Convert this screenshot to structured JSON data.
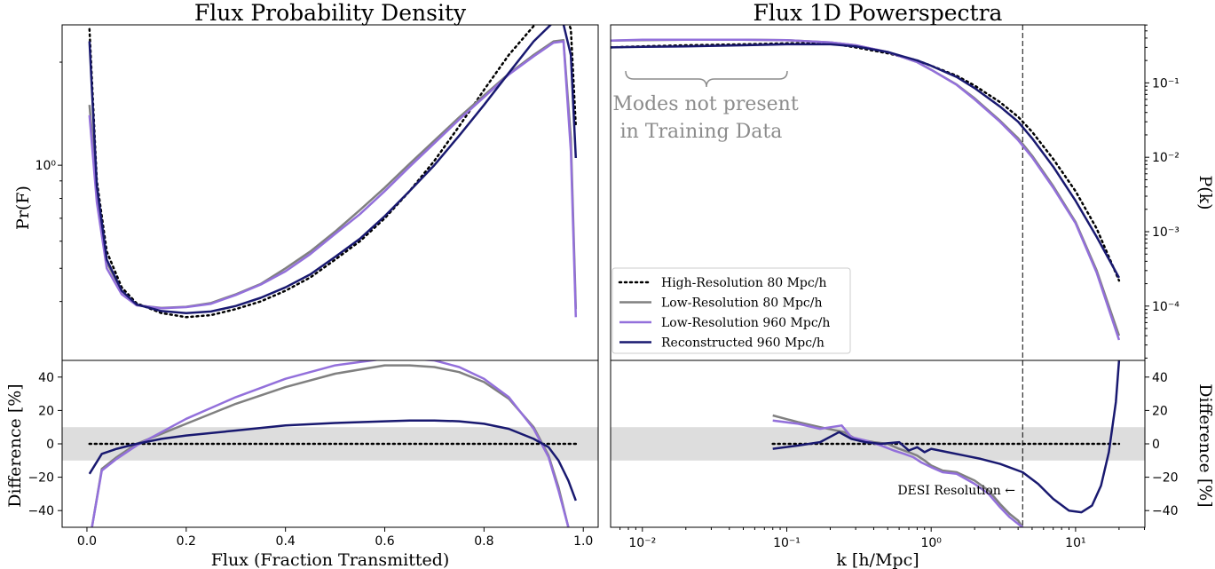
{
  "titles": {
    "left": "Flux Probability Density",
    "right": "Flux 1D Powerspectra"
  },
  "axis_labels": {
    "left_y_top": "Pr(F)",
    "left_y_bottom": "Difference [%]",
    "left_x": "Flux (Fraction Transmitted)",
    "right_y_top": "P(k)",
    "right_y_bottom": "Difference [%]",
    "right_x": "k [h/Mpc]"
  },
  "legend": [
    {
      "label": "High-Resolution 80 Mpc/h",
      "color": "#000000",
      "style": "dotted"
    },
    {
      "label": "Low-Resolution  80 Mpc/h",
      "color": "#808080",
      "style": "solid"
    },
    {
      "label": "Low-Resolution 960 Mpc/h",
      "color": "#9370db",
      "style": "solid"
    },
    {
      "label": "Reconstructed   960 Mpc/h",
      "color": "#191970",
      "style": "solid"
    }
  ],
  "annotations": {
    "modes_line1": "Modes not present",
    "modes_line2": "in Training Data",
    "desi": "DESI Resolution ←"
  },
  "chart_data": [
    {
      "type": "line",
      "panel": "pdf",
      "yscale": "log",
      "xlim": [
        -0.05,
        1.03
      ],
      "ylim_log10": [
        -0.57,
        0.41
      ],
      "yticks": [
        {
          "value": 1,
          "label": "10⁰"
        }
      ],
      "x": [
        0.005,
        0.02,
        0.04,
        0.07,
        0.1,
        0.15,
        0.2,
        0.25,
        0.3,
        0.35,
        0.4,
        0.45,
        0.5,
        0.55,
        0.6,
        0.65,
        0.7,
        0.75,
        0.8,
        0.85,
        0.9,
        0.94,
        0.96,
        0.975,
        0.985
      ],
      "series": [
        {
          "name": "High-Resolution 80 Mpc/h",
          "color": "#000000",
          "dash": "2,4",
          "width": 2.5,
          "values": [
            2.5,
            0.9,
            0.56,
            0.44,
            0.395,
            0.37,
            0.36,
            0.365,
            0.38,
            0.4,
            0.43,
            0.47,
            0.53,
            0.6,
            0.7,
            0.84,
            1.03,
            1.3,
            1.66,
            2.1,
            2.55,
            2.8,
            2.82,
            2.5,
            1.3
          ]
        },
        {
          "name": "Low-Resolution 80 Mpc/h",
          "color": "#808080",
          "dash": "",
          "width": 2.5,
          "values": [
            1.5,
            0.84,
            0.52,
            0.43,
            0.39,
            0.383,
            0.386,
            0.396,
            0.42,
            0.45,
            0.5,
            0.56,
            0.64,
            0.74,
            0.86,
            1.01,
            1.18,
            1.38,
            1.6,
            1.85,
            2.1,
            2.3,
            2.32,
            1.2,
            0.38
          ]
        },
        {
          "name": "Low-Resolution 960 Mpc/h",
          "color": "#9370db",
          "dash": "",
          "width": 2.5,
          "values": [
            1.4,
            0.78,
            0.5,
            0.42,
            0.39,
            0.382,
            0.385,
            0.394,
            0.418,
            0.448,
            0.49,
            0.55,
            0.63,
            0.72,
            0.84,
            0.99,
            1.16,
            1.36,
            1.58,
            1.84,
            2.08,
            2.28,
            2.3,
            1.1,
            0.36
          ]
        },
        {
          "name": "Reconstructed 960 Mpc/h",
          "color": "#191970",
          "dash": "",
          "width": 2.5,
          "values": [
            2.3,
            0.87,
            0.53,
            0.43,
            0.392,
            0.375,
            0.37,
            0.374,
            0.388,
            0.41,
            0.44,
            0.48,
            0.54,
            0.61,
            0.71,
            0.84,
            1.0,
            1.22,
            1.5,
            1.86,
            2.3,
            2.62,
            2.58,
            2.1,
            1.05
          ]
        }
      ]
    },
    {
      "type": "line",
      "panel": "pdf-difference",
      "xlim": [
        -0.05,
        1.03
      ],
      "ylim": [
        -50,
        50
      ],
      "xticks": [
        0.0,
        0.2,
        0.4,
        0.6,
        0.8,
        1.0
      ],
      "xticklabels": [
        "0.0",
        "0.2",
        "0.4",
        "0.6",
        "0.8",
        "1.0"
      ],
      "yticks": [
        -40,
        -20,
        0,
        20,
        40
      ],
      "yticklabels": [
        "−40",
        "−20",
        "0",
        "20",
        "40"
      ],
      "band": [
        -10,
        10
      ],
      "series": [
        {
          "name": "High-Resolution 80 Mpc/h",
          "color": "#000000",
          "dash": "2,4",
          "width": 2.5,
          "x": [
            0.005,
            0.985
          ],
          "values": [
            0,
            0
          ]
        },
        {
          "name": "Low-Resolution 80 Mpc/h",
          "color": "#808080",
          "dash": "",
          "width": 2.5,
          "x": [
            0.01,
            0.03,
            0.06,
            0.1,
            0.15,
            0.2,
            0.3,
            0.4,
            0.5,
            0.6,
            0.65,
            0.7,
            0.75,
            0.8,
            0.85,
            0.9,
            0.93,
            0.95,
            0.97
          ],
          "values": [
            -50,
            -15,
            -8,
            0,
            6,
            12,
            24,
            34,
            42,
            47,
            47,
            46,
            43,
            37,
            27,
            10,
            -7,
            -26,
            -50
          ]
        },
        {
          "name": "Low-Resolution 960 Mpc/h",
          "color": "#9370db",
          "dash": "",
          "width": 2.5,
          "x": [
            0.01,
            0.03,
            0.06,
            0.1,
            0.15,
            0.2,
            0.3,
            0.4,
            0.5,
            0.6,
            0.65,
            0.7,
            0.75,
            0.8,
            0.85,
            0.9,
            0.93,
            0.95,
            0.97
          ],
          "values": [
            -50,
            -16,
            -9,
            -1,
            7,
            15,
            28,
            39,
            47,
            51,
            51,
            50,
            46,
            39,
            28,
            9,
            -8,
            -28,
            -50
          ]
        },
        {
          "name": "Reconstructed 960 Mpc/h",
          "color": "#191970",
          "dash": "",
          "width": 2.5,
          "x": [
            0.005,
            0.03,
            0.06,
            0.1,
            0.15,
            0.2,
            0.3,
            0.4,
            0.5,
            0.6,
            0.65,
            0.7,
            0.75,
            0.8,
            0.85,
            0.9,
            0.93,
            0.95,
            0.97,
            0.985
          ],
          "values": [
            -18,
            -6,
            -3,
            0,
            3,
            5,
            8,
            11,
            12.5,
            13.5,
            14,
            14,
            13.5,
            12,
            9,
            3,
            -2,
            -10,
            -22,
            -34
          ]
        }
      ]
    },
    {
      "type": "line",
      "panel": "powerspectrum",
      "xscale": "log",
      "yscale": "log",
      "xlim_log10": [
        -2.22,
        1.48
      ],
      "ylim_log10": [
        -4.73,
        -0.22
      ],
      "vline_k": 4.3,
      "yticks": [
        {
          "value": 0.1,
          "label": "10⁻¹"
        },
        {
          "value": 0.01,
          "label": "10⁻²"
        },
        {
          "value": 0.001,
          "label": "10⁻³"
        },
        {
          "value": 0.0001,
          "label": "10⁻⁴"
        }
      ],
      "x": [
        0.006,
        0.01,
        0.02,
        0.05,
        0.1,
        0.2,
        0.3,
        0.5,
        0.8,
        1.0,
        1.5,
        2.0,
        3.0,
        4.0,
        5.0,
        7.0,
        10.0,
        14.0,
        20.0
      ],
      "series": [
        {
          "name": "High-Resolution 80 Mpc/h",
          "color": "#000000",
          "dash": "2,4",
          "width": 2.5,
          "values": [
            0.3,
            0.31,
            0.32,
            0.33,
            0.34,
            0.34,
            0.3,
            0.25,
            0.2,
            0.17,
            0.125,
            0.092,
            0.055,
            0.035,
            0.022,
            0.0095,
            0.0035,
            0.0011,
            0.00022
          ]
        },
        {
          "name": "Low-Resolution 80 Mpc/h",
          "color": "#808080",
          "dash": "",
          "width": 2.5,
          "values": [
            0.37,
            0.375,
            0.38,
            0.38,
            0.375,
            0.35,
            0.32,
            0.26,
            0.19,
            0.15,
            0.095,
            0.062,
            0.031,
            0.018,
            0.0105,
            0.0041,
            0.00135,
            0.0003,
            4e-05
          ]
        },
        {
          "name": "Low-Resolution 960 Mpc/h",
          "color": "#9370db",
          "dash": "",
          "width": 2.5,
          "values": [
            0.37,
            0.38,
            0.38,
            0.38,
            0.375,
            0.35,
            0.32,
            0.26,
            0.19,
            0.15,
            0.094,
            0.06,
            0.03,
            0.017,
            0.01,
            0.0039,
            0.0013,
            0.00028,
            3.5e-05
          ]
        },
        {
          "name": "Reconstructed 960 Mpc/h",
          "color": "#191970",
          "dash": "",
          "width": 2.5,
          "values": [
            0.3,
            0.305,
            0.31,
            0.32,
            0.33,
            0.33,
            0.31,
            0.26,
            0.2,
            0.17,
            0.12,
            0.085,
            0.048,
            0.03,
            0.018,
            0.0075,
            0.0026,
            0.00085,
            0.00024
          ]
        }
      ]
    },
    {
      "type": "line",
      "panel": "powerspectrum-difference",
      "xscale": "log",
      "xlim_log10": [
        -2.22,
        1.48
      ],
      "ylim": [
        -50,
        50
      ],
      "vline_k": 4.3,
      "band": [
        -10,
        10
      ],
      "xticks": [
        0.01,
        0.1,
        1,
        10
      ],
      "xticklabels": [
        "10⁻²",
        "10⁻¹",
        "10⁰",
        "10¹"
      ],
      "yticks": [
        -40,
        -20,
        0,
        20,
        40
      ],
      "yticklabels": [
        "−40",
        "−20",
        "0",
        "20",
        "40"
      ],
      "series": [
        {
          "name": "High-Resolution 80 Mpc/h",
          "color": "#000000",
          "dash": "2,4",
          "width": 2.5,
          "x": [
            0.08,
            20.0
          ],
          "values": [
            0,
            0
          ]
        },
        {
          "name": "Low-Resolution 80 Mpc/h",
          "color": "#808080",
          "dash": "",
          "width": 2.5,
          "x": [
            0.08,
            0.12,
            0.17,
            0.25,
            0.3,
            0.4,
            0.5,
            0.6,
            0.7,
            0.8,
            0.9,
            1.0,
            1.2,
            1.5,
            2.0,
            2.5,
            3.0,
            3.5,
            4.0,
            4.3
          ],
          "values": [
            17,
            13,
            10,
            7,
            3,
            1,
            0,
            -3,
            -5,
            -7,
            -10,
            -13,
            -16,
            -17,
            -22,
            -28,
            -36,
            -42,
            -46,
            -50
          ]
        },
        {
          "name": "Low-Resolution 960 Mpc/h",
          "color": "#9370db",
          "dash": "",
          "width": 2.5,
          "x": [
            0.08,
            0.12,
            0.17,
            0.24,
            0.28,
            0.35,
            0.45,
            0.55,
            0.65,
            0.75,
            0.85,
            1.0,
            1.2,
            1.5,
            2.0,
            2.5,
            3.0,
            3.5,
            4.0,
            4.3
          ],
          "values": [
            14,
            12,
            9,
            11,
            4,
            2,
            -1,
            -4,
            -6,
            -8,
            -11,
            -14,
            -17,
            -18,
            -24,
            -30,
            -38,
            -44,
            -48,
            -50
          ]
        },
        {
          "name": "Reconstructed 960 Mpc/h",
          "color": "#191970",
          "dash": "",
          "width": 2.5,
          "x": [
            0.08,
            0.12,
            0.17,
            0.23,
            0.28,
            0.35,
            0.45,
            0.6,
            0.7,
            0.8,
            0.9,
            1.0,
            1.3,
            1.7,
            2.2,
            3.0,
            4.3,
            5.5,
            7.0,
            9.0,
            11.0,
            13.0,
            15.0,
            17.0,
            19.0,
            20.0
          ],
          "values": [
            -3,
            -1,
            1,
            7,
            3,
            1,
            0,
            1,
            -4,
            -2,
            -5,
            -3,
            -5,
            -7,
            -9,
            -12,
            -17,
            -24,
            -33,
            -40,
            -41,
            -37,
            -25,
            -5,
            25,
            50
          ]
        }
      ]
    }
  ]
}
